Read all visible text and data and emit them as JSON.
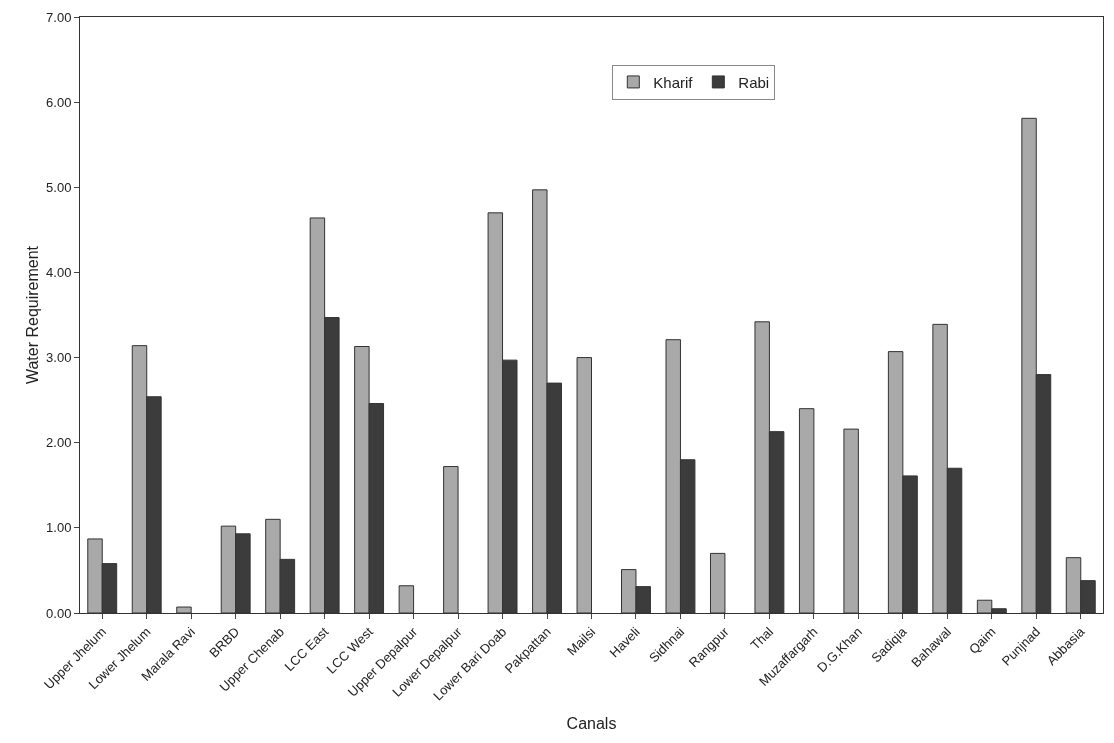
{
  "chart_data": {
    "type": "bar",
    "xlabel": "Canals",
    "ylabel": "Water Requirement",
    "categories": [
      "Upper Jhelum",
      "Lower Jhelum",
      "Marala Ravi",
      "BRBD",
      "Upper Chenab",
      "LCC East",
      "LCC West",
      "Upper Depalpur",
      "Lower Depalpur",
      "Lower Bari Doab",
      "Pakpattan",
      "Mailsi",
      "Haveli",
      "Sidhnai",
      "Rangpur",
      "Thal",
      "Muzaffargarh",
      "D.G.Khan",
      "Sadiqia",
      "Bahawal",
      "Qaim",
      "Punjnad",
      "Abbasia"
    ],
    "series": [
      {
        "name": "Kharif",
        "color": "#a9a9a9",
        "values": [
          0.87,
          3.14,
          0.07,
          1.02,
          1.1,
          4.64,
          3.13,
          0.32,
          1.72,
          4.7,
          4.97,
          3.0,
          0.51,
          3.21,
          0.7,
          3.42,
          2.4,
          2.16,
          3.07,
          3.39,
          0.15,
          5.81,
          0.65
        ]
      },
      {
        "name": "Rabi",
        "color": "#3c3c3c",
        "values": [
          0.58,
          2.54,
          null,
          0.93,
          0.63,
          3.47,
          2.46,
          null,
          null,
          2.97,
          2.7,
          null,
          0.31,
          1.8,
          null,
          2.13,
          null,
          null,
          1.61,
          1.7,
          0.05,
          2.8,
          0.38
        ]
      }
    ],
    "ylim": [
      0,
      7
    ],
    "yticks": [
      {
        "value": 0,
        "label": "0.00"
      },
      {
        "value": 1,
        "label": "1.00"
      },
      {
        "value": 2,
        "label": "2.00"
      },
      {
        "value": 3,
        "label": "3.00"
      },
      {
        "value": 4,
        "label": "4.00"
      },
      {
        "value": 5,
        "label": "5.00"
      },
      {
        "value": 6,
        "label": "6.00"
      },
      {
        "value": 7,
        "label": "7.00"
      }
    ],
    "grid": false,
    "legend": "top"
  }
}
